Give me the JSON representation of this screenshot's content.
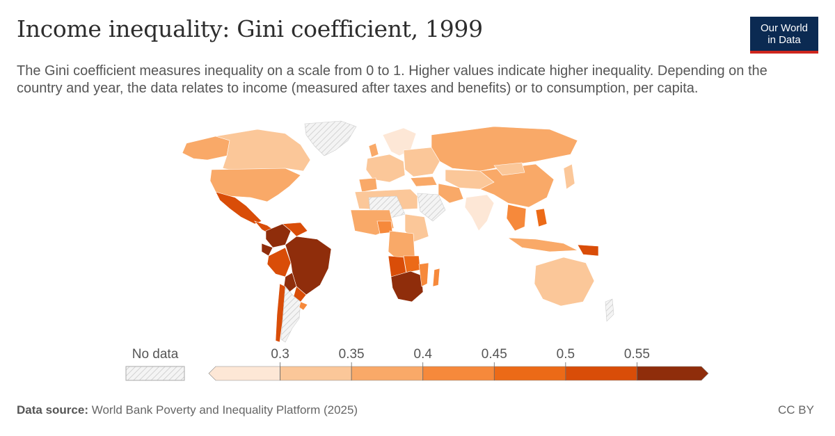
{
  "header": {
    "title": "Income inequality: Gini coefficient, 1999",
    "subtitle": "The Gini coefficient measures inequality on a scale from 0 to 1. Higher values indicate higher inequality. Depending on the country and year, the data relates to income (measured after taxes and benefits) or to consumption, per capita."
  },
  "logo": {
    "line1": "Our World",
    "line2": "in Data"
  },
  "legend": {
    "no_data_label": "No data",
    "ticks": [
      "0.3",
      "0.35",
      "0.4",
      "0.45",
      "0.5",
      "0.55"
    ],
    "colors": [
      "#fde7d6",
      "#fbc799",
      "#f9a968",
      "#f6893b",
      "#ec6a17",
      "#d94d08",
      "#8f2d0b"
    ]
  },
  "footer": {
    "source_label": "Data source:",
    "source_text": "World Bank Poverty and Inequality Platform (2025)",
    "license": "CC BY"
  }
}
